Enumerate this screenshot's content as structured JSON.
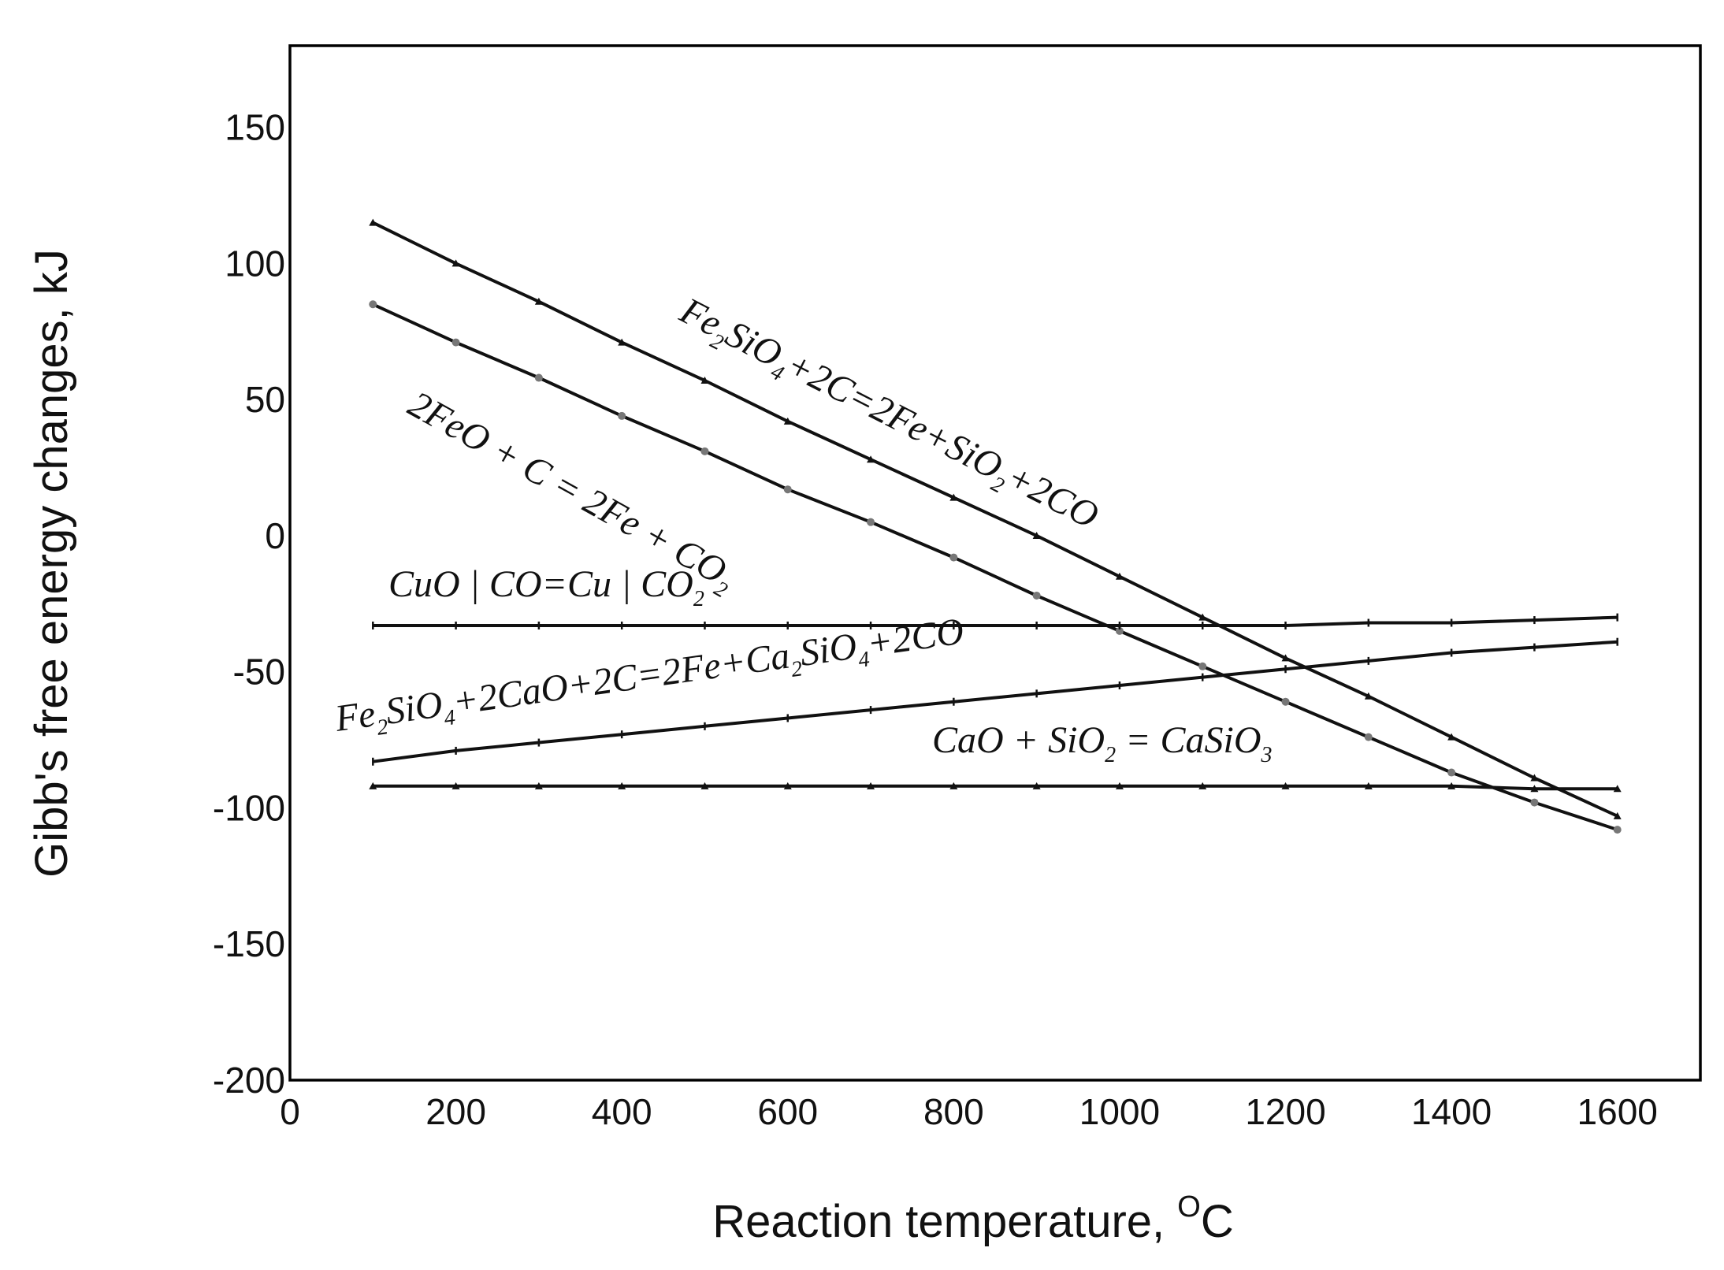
{
  "chart_data": {
    "type": "line",
    "title": "",
    "xlabel": "Reaction temperature, ",
    "xlabel_unit_sup": "O",
    "xlabel_unit": "C",
    "ylabel": "Gibb's free energy changes, kJ",
    "xlim": [
      0,
      1700
    ],
    "ylim": [
      -200,
      180
    ],
    "xticks": [
      0,
      200,
      400,
      600,
      800,
      1000,
      1200,
      1400,
      1600
    ],
    "yticks": [
      -200,
      -150,
      -100,
      -50,
      0,
      50,
      100,
      150
    ],
    "grid": false,
    "x": [
      100,
      200,
      300,
      400,
      500,
      600,
      700,
      800,
      900,
      1000,
      1100,
      1200,
      1300,
      1400,
      1500,
      1600
    ],
    "series": [
      {
        "name": "Fe2SiO4+2C=2Fe+SiO2+2CO",
        "label_parts": [
          [
            "Fe",
            ""
          ],
          [
            "2",
            "sub"
          ],
          [
            "SiO",
            ""
          ],
          [
            "4",
            "sub"
          ],
          [
            "+2C=2Fe+SiO",
            ""
          ],
          [
            "2",
            "sub"
          ],
          [
            "+2CO",
            ""
          ]
        ],
        "label_angle": 27,
        "values": [
          115,
          100,
          86,
          71,
          57,
          42,
          28,
          14,
          0,
          -15,
          -30,
          -45,
          -59,
          -74,
          -89,
          -103
        ]
      },
      {
        "name": "2FeO + C = 2Fe + CO2",
        "label_parts": [
          [
            "2FeO + C = 2Fe + CO",
            ""
          ],
          [
            "2",
            "sub"
          ]
        ],
        "label_angle": 29,
        "values": [
          85,
          71,
          58,
          44,
          31,
          17,
          5,
          -8,
          -22,
          -35,
          -48,
          -61,
          -74,
          -87,
          -98,
          -108
        ]
      },
      {
        "name": "CuO+CO=Cu+CO2",
        "label_parts": [
          [
            "CuO | CO=Cu | CO",
            ""
          ],
          [
            "2",
            "sub"
          ]
        ],
        "label_angle": 0,
        "values": [
          -33,
          -33,
          -33,
          -33,
          -33,
          -33,
          -33,
          -33,
          -33,
          -33,
          -33,
          -33,
          -32,
          -32,
          -31,
          -30
        ]
      },
      {
        "name": "Fe2SiO4+2CaO+2C=2Fe+Ca2SiO4+2CO",
        "label_parts": [
          [
            "Fe",
            ""
          ],
          [
            "2",
            "sub"
          ],
          [
            "SiO",
            ""
          ],
          [
            "4",
            "sub"
          ],
          [
            "+2CaO+2C=2Fe+Ca",
            ""
          ],
          [
            "2",
            "sub"
          ],
          [
            "SiO",
            ""
          ],
          [
            "4",
            "sub"
          ],
          [
            "+2CO",
            ""
          ]
        ],
        "label_angle": -8,
        "values": [
          -83,
          -79,
          -76,
          -73,
          -70,
          -67,
          -64,
          -61,
          -58,
          -55,
          -52,
          -49,
          -46,
          -43,
          -41,
          -39
        ]
      },
      {
        "name": "CaO + SiO2 = CaSiO3",
        "label_parts": [
          [
            "CaO + SiO",
            ""
          ],
          [
            "2",
            "sub"
          ],
          [
            " = CaSiO",
            ""
          ],
          [
            "3",
            "sub"
          ]
        ],
        "label_angle": 0,
        "values": [
          -92,
          -92,
          -92,
          -92,
          -92,
          -92,
          -92,
          -92,
          -92,
          -92,
          -92,
          -92,
          -92,
          -92,
          -93,
          -93
        ]
      }
    ]
  }
}
